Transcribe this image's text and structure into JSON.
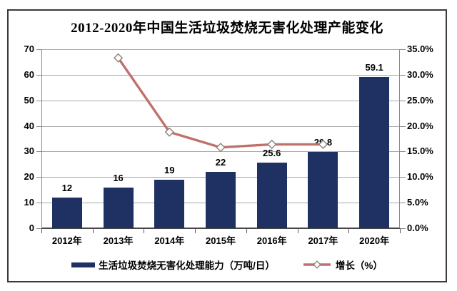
{
  "title": "2012-2020年中国生活垃圾焚烧无害化处理产能变化",
  "chart_data": {
    "type": "bar+line",
    "title": "2012-2020年中国生活垃圾焚烧无害化处理产能变化",
    "categories": [
      "2012年",
      "2013年",
      "2014年",
      "2015年",
      "2016年",
      "2017年",
      "2020年"
    ],
    "series": [
      {
        "name": "生活垃圾焚烧无害化处理能力（万吨/日）",
        "type": "bar",
        "axis": "left",
        "values": [
          12,
          16,
          19,
          22,
          25.6,
          29.8,
          59.1
        ],
        "value_labels": [
          "12",
          "16",
          "19",
          "22",
          "25.6",
          "29.8",
          "59.1"
        ],
        "color": "#1f3062"
      },
      {
        "name": "增长（%）",
        "type": "line",
        "axis": "right",
        "values": [
          null,
          33.3,
          18.8,
          15.8,
          16.4,
          16.4,
          null
        ],
        "color": "#c0716b",
        "marker": "diamond",
        "marker_fill": "#ffffff",
        "marker_stroke": "#8c8077"
      }
    ],
    "left_axis": {
      "min": 0,
      "max": 70,
      "step": 10,
      "ticks_top_down": [
        "70",
        "60",
        "50",
        "40",
        "30",
        "20",
        "10",
        "0"
      ]
    },
    "right_axis": {
      "min": 0,
      "max": 35,
      "step": 5,
      "ticks_top_down": [
        "35.0%",
        "30.0%",
        "25.0%",
        "20.0%",
        "15.0%",
        "10.0%",
        "5.0%",
        "0.0%"
      ]
    },
    "grid": true,
    "legend_position": "bottom",
    "colors": {
      "grid": "#a8a8a8",
      "axis": "#8a8a8a",
      "baseline": "#474747",
      "text": "#000000",
      "background": "#ffffff"
    }
  }
}
